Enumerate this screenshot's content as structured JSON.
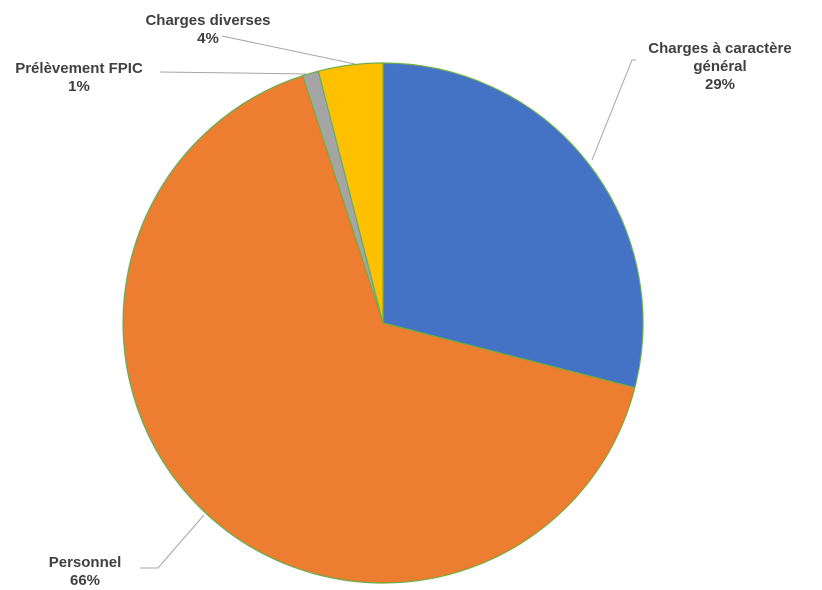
{
  "chart_data": {
    "type": "pie",
    "slices": [
      {
        "name": "Charges à caractère général",
        "lines": [
          "Charges à caractère",
          "général"
        ],
        "value": 29,
        "label": "29%",
        "color": "#4472C4"
      },
      {
        "name": "Personnel",
        "lines": [
          "Personnel"
        ],
        "value": 66,
        "label": "66%",
        "color": "#ED7D31"
      },
      {
        "name": "Prélèvement FPIC",
        "lines": [
          "Prélèvement FPIC"
        ],
        "value": 1,
        "label": "1%",
        "color": "#A5A5A5"
      },
      {
        "name": "Charges diverses",
        "lines": [
          "Charges diverses"
        ],
        "value": 4,
        "label": "4%",
        "color": "#FFC000"
      }
    ],
    "start_angle": "12 o'clock",
    "direction": "clockwise",
    "legend": "none",
    "slice_border_color": "#70AD47",
    "leader_line_color": "#A6A6A6"
  }
}
